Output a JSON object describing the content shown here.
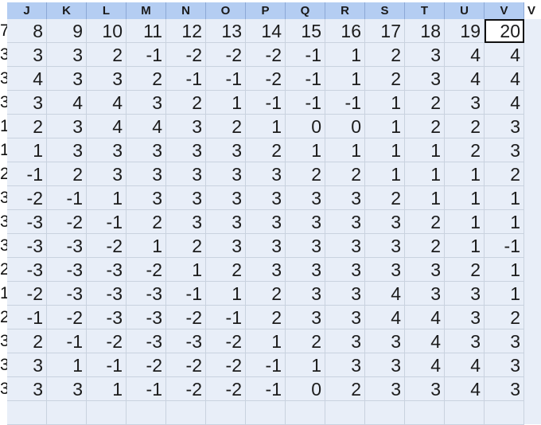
{
  "columns": [
    "J",
    "K",
    "L",
    "M",
    "N",
    "O",
    "P",
    "Q",
    "R",
    "S",
    "T",
    "U",
    "V"
  ],
  "overflow_header": "V",
  "row_edge_digits": [
    "7",
    "3",
    "3",
    "3",
    "1",
    "1",
    "2",
    "3",
    "3",
    "3",
    "2",
    "1",
    "2",
    "3",
    "3",
    "3"
  ],
  "rows": [
    [
      "8",
      "9",
      "10",
      "11",
      "12",
      "13",
      "14",
      "15",
      "16",
      "17",
      "18",
      "19",
      "20"
    ],
    [
      "3",
      "3",
      "2",
      "-1",
      "-2",
      "-2",
      "-2",
      "-1",
      "1",
      "2",
      "3",
      "4",
      "4"
    ],
    [
      "4",
      "3",
      "3",
      "2",
      "-1",
      "-1",
      "-2",
      "-1",
      "1",
      "2",
      "3",
      "4",
      "4"
    ],
    [
      "3",
      "4",
      "4",
      "3",
      "2",
      "1",
      "-1",
      "-1",
      "-1",
      "1",
      "2",
      "3",
      "4"
    ],
    [
      "2",
      "3",
      "4",
      "4",
      "3",
      "2",
      "1",
      "0",
      "0",
      "1",
      "2",
      "2",
      "3"
    ],
    [
      "1",
      "3",
      "3",
      "3",
      "3",
      "3",
      "2",
      "1",
      "1",
      "1",
      "1",
      "2",
      "3"
    ],
    [
      "-1",
      "2",
      "3",
      "3",
      "3",
      "3",
      "3",
      "2",
      "2",
      "1",
      "1",
      "1",
      "2"
    ],
    [
      "-2",
      "-1",
      "1",
      "3",
      "3",
      "3",
      "3",
      "3",
      "3",
      "2",
      "1",
      "1",
      "1"
    ],
    [
      "-3",
      "-2",
      "-1",
      "2",
      "3",
      "3",
      "3",
      "3",
      "3",
      "3",
      "2",
      "1",
      "1"
    ],
    [
      "-3",
      "-3",
      "-2",
      "1",
      "2",
      "3",
      "3",
      "3",
      "3",
      "3",
      "2",
      "1",
      "-1"
    ],
    [
      "-3",
      "-3",
      "-3",
      "-2",
      "1",
      "2",
      "3",
      "3",
      "3",
      "3",
      "3",
      "2",
      "1"
    ],
    [
      "-2",
      "-3",
      "-3",
      "-3",
      "-1",
      "1",
      "2",
      "3",
      "3",
      "4",
      "3",
      "3",
      "1"
    ],
    [
      "-1",
      "-2",
      "-3",
      "-3",
      "-2",
      "-1",
      "2",
      "3",
      "3",
      "4",
      "4",
      "3",
      "2"
    ],
    [
      "2",
      "-1",
      "-2",
      "-3",
      "-3",
      "-2",
      "1",
      "2",
      "3",
      "3",
      "4",
      "3",
      "3"
    ],
    [
      "3",
      "1",
      "-1",
      "-2",
      "-2",
      "-2",
      "-1",
      "1",
      "3",
      "3",
      "4",
      "4",
      "3"
    ],
    [
      "3",
      "3",
      "1",
      "-1",
      "-2",
      "-2",
      "-1",
      "0",
      "2",
      "3",
      "3",
      "4",
      "3"
    ]
  ],
  "blank_rows": 1,
  "selected_cell": {
    "row": 0,
    "col": 12
  },
  "colors": {
    "header_bg": "#b4cdf2",
    "cell_bg": "#e8eef8",
    "gridline": "#c9d2df",
    "selection": "#111111"
  }
}
